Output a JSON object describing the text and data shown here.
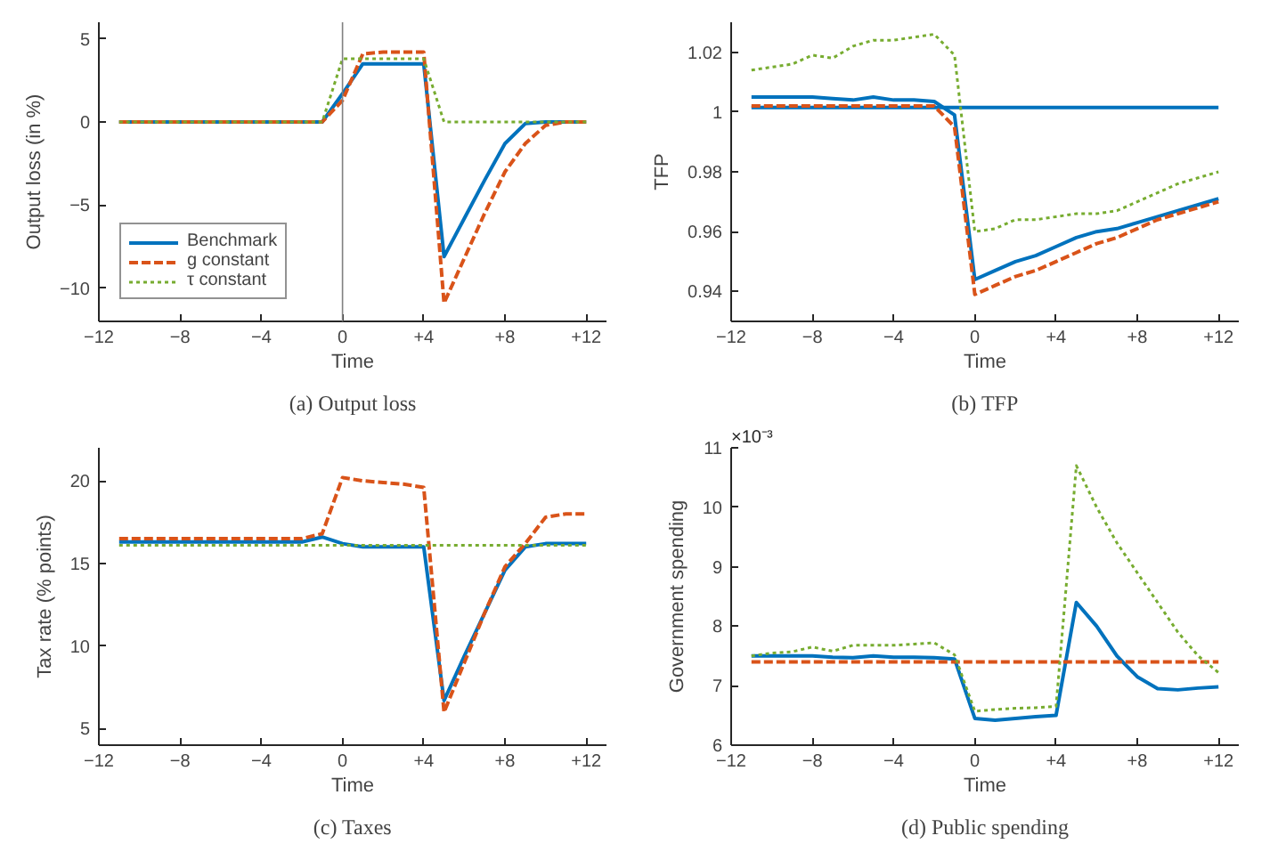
{
  "chart_data": [
    {
      "type": "line",
      "title": "(a) Output loss",
      "xlabel": "Time",
      "ylabel": "Output loss (in %)",
      "x": [
        -11,
        -10,
        -9,
        -8,
        -7,
        -6,
        -5,
        -4,
        -3,
        -2,
        -1,
        0,
        1,
        2,
        3,
        4,
        5,
        6,
        7,
        8,
        9,
        10,
        11,
        12
      ],
      "xlim": [
        -12,
        13
      ],
      "xticks": [
        -12,
        -8,
        -4,
        0,
        {
          "value": 4,
          "label": "+4"
        },
        {
          "value": 8,
          "label": "+8"
        },
        {
          "value": 12,
          "label": "+12"
        }
      ],
      "ylim": [
        -12,
        6
      ],
      "yticks": [
        -10,
        -5,
        0,
        5
      ],
      "legend": "bottom left",
      "grid": false,
      "ref_lines": [
        {
          "axis": "x",
          "value": 0,
          "color": "#808080"
        }
      ],
      "series": [
        {
          "name": "Benchmark",
          "color": "#0072bd",
          "line_style": "solid",
          "values": [
            0,
            0,
            0,
            0,
            0,
            0,
            0,
            0,
            0,
            0,
            0,
            1.7,
            3.5,
            3.5,
            3.5,
            3.5,
            -8.1,
            -5.8,
            -3.5,
            -1.3,
            -0.1,
            0,
            0,
            0
          ]
        },
        {
          "name": "g constant",
          "color": "#d95319",
          "line_style": "dashed",
          "values": [
            0,
            0,
            0,
            0,
            0,
            0,
            0,
            0,
            0,
            0,
            0,
            1.3,
            4.1,
            4.2,
            4.2,
            4.2,
            -10.9,
            -8.2,
            -5.5,
            -3.0,
            -1.3,
            -0.2,
            0,
            0
          ]
        },
        {
          "name": "τ constant",
          "color": "#77ac30",
          "line_style": "dotted",
          "values": [
            0,
            0,
            0,
            0,
            0,
            0,
            0,
            0,
            0,
            0,
            0,
            3.8,
            3.8,
            3.8,
            3.8,
            3.8,
            0,
            0,
            0,
            0,
            0,
            0,
            0,
            0
          ]
        }
      ]
    },
    {
      "type": "line",
      "title": "(b) TFP",
      "xlabel": "Time",
      "ylabel": "TFP",
      "x": [
        -11,
        -10,
        -9,
        -8,
        -7,
        -6,
        -5,
        -4,
        -3,
        -2,
        -1,
        0,
        1,
        2,
        3,
        4,
        5,
        6,
        7,
        8,
        9,
        10,
        11,
        12
      ],
      "xlim": [
        -12,
        13
      ],
      "xticks": [
        -12,
        -8,
        -4,
        0,
        {
          "value": 4,
          "label": "+4"
        },
        {
          "value": 8,
          "label": "+8"
        },
        {
          "value": 12,
          "label": "+12"
        }
      ],
      "ylim": [
        0.93,
        1.03
      ],
      "yticks": [
        0.94,
        0.96,
        0.98,
        {
          "value": 1,
          "label": "1"
        },
        1.02
      ],
      "legend": false,
      "grid": false,
      "series": [
        {
          "color": "#0072bd",
          "line_style": "solid",
          "values": [
            1.005,
            1.005,
            1.005,
            1.005,
            1.0045,
            1.004,
            1.005,
            1.004,
            1.004,
            1.0035,
            0.999,
            0.944,
            0.947,
            0.95,
            0.952,
            0.955,
            0.958,
            0.96,
            0.961,
            0.963,
            0.965,
            0.967,
            0.969,
            0.971
          ]
        },
        {
          "color": "#0072bd",
          "line_style": "solid",
          "values": [
            1.0015,
            1.0015,
            1.0015,
            1.0015,
            1.0015,
            1.0015,
            1.0015,
            1.0015,
            1.0015,
            1.0015,
            1.0015,
            1.0015,
            1.0015,
            1.0015,
            1.0015,
            1.0015,
            1.0015,
            1.0015,
            1.0015,
            1.0015,
            1.0015,
            1.0015,
            1.0015,
            1.0015
          ]
        },
        {
          "color": "#d95319",
          "line_style": "dashed",
          "values": [
            1.002,
            1.002,
            1.002,
            1.002,
            1.002,
            1.002,
            1.002,
            1.002,
            1.002,
            1.002,
            0.995,
            0.939,
            0.942,
            0.945,
            0.947,
            0.95,
            0.953,
            0.956,
            0.958,
            0.961,
            0.964,
            0.966,
            0.968,
            0.97
          ]
        },
        {
          "color": "#77ac30",
          "line_style": "dotted",
          "values": [
            1.014,
            1.015,
            1.016,
            1.019,
            1.018,
            1.022,
            1.024,
            1.024,
            1.025,
            1.026,
            1.019,
            0.96,
            0.961,
            0.964,
            0.964,
            0.965,
            0.966,
            0.966,
            0.967,
            0.97,
            0.973,
            0.976,
            0.978,
            0.98
          ]
        }
      ]
    },
    {
      "type": "line",
      "title": "(c) Taxes",
      "xlabel": "Time",
      "ylabel": "Tax rate (% points)",
      "x": [
        -11,
        -10,
        -9,
        -8,
        -7,
        -6,
        -5,
        -4,
        -3,
        -2,
        -1,
        0,
        1,
        2,
        3,
        4,
        5,
        6,
        7,
        8,
        9,
        10,
        11,
        12
      ],
      "xlim": [
        -12,
        13
      ],
      "xticks": [
        -12,
        -8,
        -4,
        0,
        {
          "value": 4,
          "label": "+4"
        },
        {
          "value": 8,
          "label": "+8"
        },
        {
          "value": 12,
          "label": "+12"
        }
      ],
      "ylim": [
        4,
        22
      ],
      "yticks": [
        5,
        10,
        15,
        20
      ],
      "legend": false,
      "grid": false,
      "series": [
        {
          "color": "#0072bd",
          "line_style": "solid",
          "values": [
            16.3,
            16.3,
            16.3,
            16.3,
            16.3,
            16.3,
            16.3,
            16.3,
            16.3,
            16.3,
            16.6,
            16.2,
            16.0,
            16.0,
            16.0,
            16.0,
            6.7,
            9.4,
            12.0,
            14.6,
            16.0,
            16.2,
            16.2,
            16.2
          ]
        },
        {
          "color": "#d95319",
          "line_style": "dashed",
          "values": [
            16.5,
            16.5,
            16.5,
            16.5,
            16.5,
            16.5,
            16.5,
            16.5,
            16.5,
            16.5,
            16.8,
            20.2,
            20.0,
            19.9,
            19.8,
            19.6,
            6.0,
            9.0,
            12.0,
            14.8,
            16.2,
            17.8,
            18.0,
            18.0
          ]
        },
        {
          "color": "#77ac30",
          "line_style": "dotted",
          "values": [
            16.1,
            16.1,
            16.1,
            16.1,
            16.1,
            16.1,
            16.1,
            16.1,
            16.1,
            16.1,
            16.1,
            16.1,
            16.1,
            16.1,
            16.1,
            16.1,
            16.1,
            16.1,
            16.1,
            16.1,
            16.1,
            16.1,
            16.1,
            16.1
          ]
        }
      ]
    },
    {
      "type": "line",
      "title": "(d) Public spending",
      "xlabel": "Time",
      "ylabel": "Government spending",
      "annotations": [
        "×10⁻³"
      ],
      "x": [
        -11,
        -10,
        -9,
        -8,
        -7,
        -6,
        -5,
        -4,
        -3,
        -2,
        -1,
        0,
        1,
        2,
        3,
        4,
        5,
        6,
        7,
        8,
        9,
        10,
        11,
        12
      ],
      "xlim": [
        -12,
        13
      ],
      "xticks": [
        -12,
        -8,
        -4,
        0,
        {
          "value": 4,
          "label": "+4"
        },
        {
          "value": 8,
          "label": "+8"
        },
        {
          "value": 12,
          "label": "+12"
        }
      ],
      "ylim": [
        6,
        11
      ],
      "yticks": [
        6,
        7,
        8,
        9,
        10,
        11
      ],
      "legend": false,
      "grid": false,
      "series": [
        {
          "color": "#0072bd",
          "line_style": "solid",
          "values": [
            7.5,
            7.5,
            7.5,
            7.5,
            7.48,
            7.47,
            7.5,
            7.48,
            7.48,
            7.47,
            7.45,
            6.45,
            6.42,
            6.45,
            6.48,
            6.5,
            8.4,
            8.0,
            7.5,
            7.15,
            6.95,
            6.93,
            6.96,
            6.98
          ]
        },
        {
          "color": "#d95319",
          "line_style": "dashed",
          "values": [
            7.4,
            7.4,
            7.4,
            7.4,
            7.4,
            7.4,
            7.4,
            7.4,
            7.4,
            7.4,
            7.4,
            7.4,
            7.4,
            7.4,
            7.4,
            7.4,
            7.4,
            7.4,
            7.4,
            7.4,
            7.4,
            7.4,
            7.4,
            7.4
          ]
        },
        {
          "color": "#77ac30",
          "line_style": "dotted",
          "values": [
            7.5,
            7.55,
            7.57,
            7.65,
            7.58,
            7.68,
            7.68,
            7.68,
            7.7,
            7.72,
            7.52,
            6.57,
            6.6,
            6.62,
            6.63,
            6.65,
            10.7,
            10.0,
            9.4,
            8.9,
            8.4,
            7.9,
            7.5,
            7.22
          ]
        }
      ]
    }
  ]
}
